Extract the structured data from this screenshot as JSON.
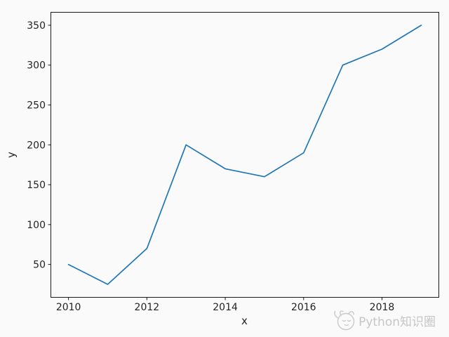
{
  "chart_data": {
    "type": "line",
    "x": [
      2010,
      2011,
      2012,
      2013,
      2014,
      2015,
      2016,
      2017,
      2018,
      2019
    ],
    "values": [
      50,
      25,
      70,
      200,
      170,
      160,
      190,
      300,
      320,
      350
    ],
    "title": "",
    "xlabel": "x",
    "ylabel": "y",
    "xlim": [
      2009.55,
      2019.45
    ],
    "ylim": [
      8.75,
      366.25
    ],
    "xticks": [
      2010,
      2012,
      2014,
      2016,
      2018
    ],
    "yticks": [
      50,
      100,
      150,
      200,
      250,
      300,
      350
    ],
    "grid": false,
    "legend": false,
    "line_color": "#1f77b4",
    "line_width": 1.7
  },
  "colors": {
    "axis": "#1a1a1a",
    "tick_text": "#242424",
    "background": "#fafafa",
    "watermark": "#c6c6c6"
  },
  "watermark": {
    "text": "Python知识圈"
  }
}
